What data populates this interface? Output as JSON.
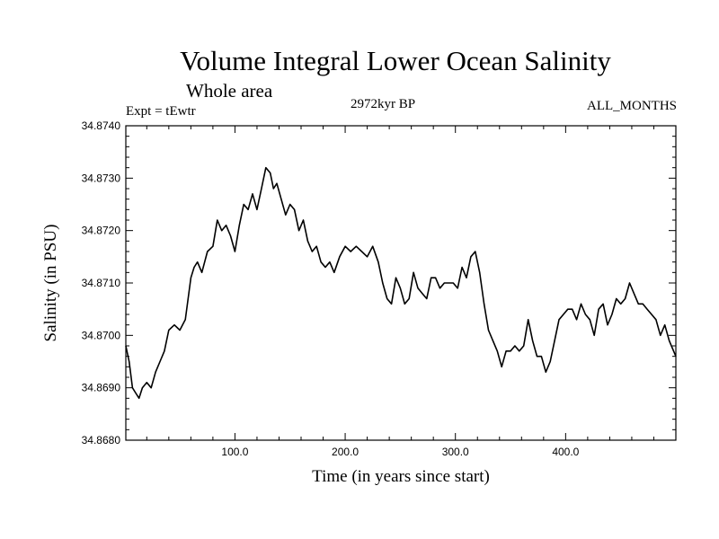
{
  "title": "Volume Integral Lower Ocean Salinity",
  "subtitle": "Whole area",
  "experiment": "Expt = tEwtr",
  "period": "2972kyr BP",
  "months": "ALL_MONTHS",
  "chart_data": {
    "type": "line",
    "title": "Volume Integral Lower Ocean Salinity",
    "xlabel": "Time (in years since start)",
    "ylabel": "Salinity (in PSU)",
    "xlim": [
      1,
      500
    ],
    "ylim": [
      34.868,
      34.874
    ],
    "xticks": [
      100,
      200,
      300,
      400
    ],
    "xtick_labels": [
      "100.0",
      "200.0",
      "300.0",
      "400.0"
    ],
    "yticks": [
      34.868,
      34.869,
      34.87,
      34.871,
      34.872,
      34.873,
      34.874
    ],
    "ytick_labels": [
      "34.8680",
      "34.8690",
      "34.8700",
      "34.8710",
      "34.8720",
      "34.8730",
      "34.8740"
    ],
    "line_color": "#000000",
    "series": [
      {
        "name": "salinity",
        "x": [
          1,
          4,
          7,
          10,
          13,
          16,
          20,
          24,
          28,
          32,
          36,
          40,
          45,
          50,
          55,
          60,
          63,
          66,
          70,
          75,
          80,
          84,
          88,
          92,
          96,
          100,
          104,
          108,
          112,
          116,
          120,
          124,
          128,
          132,
          135,
          138,
          142,
          146,
          150,
          154,
          158,
          162,
          166,
          170,
          174,
          178,
          182,
          186,
          190,
          195,
          200,
          205,
          210,
          215,
          220,
          225,
          230,
          234,
          238,
          242,
          246,
          250,
          254,
          258,
          262,
          266,
          270,
          274,
          278,
          282,
          286,
          290,
          294,
          298,
          302,
          306,
          310,
          314,
          318,
          322,
          326,
          330,
          334,
          338,
          342,
          346,
          350,
          354,
          358,
          362,
          366,
          370,
          374,
          378,
          382,
          386,
          390,
          394,
          398,
          402,
          406,
          410,
          414,
          418,
          422,
          426,
          430,
          434,
          438,
          442,
          446,
          450,
          454,
          458,
          462,
          466,
          470,
          474,
          478,
          482,
          486,
          490,
          494,
          498,
          500
        ],
        "values": [
          34.8698,
          34.8695,
          34.869,
          34.8689,
          34.8688,
          34.869,
          34.8691,
          34.869,
          34.8693,
          34.8695,
          34.8697,
          34.8701,
          34.8702,
          34.8701,
          34.8703,
          34.8711,
          34.8713,
          34.8714,
          34.8712,
          34.8716,
          34.8717,
          34.8722,
          34.872,
          34.8721,
          34.8719,
          34.8716,
          34.8721,
          34.8725,
          34.8724,
          34.8727,
          34.8724,
          34.8728,
          34.8732,
          34.8731,
          34.8728,
          34.8729,
          34.8726,
          34.8723,
          34.8725,
          34.8724,
          34.872,
          34.8722,
          34.8718,
          34.8716,
          34.8717,
          34.8714,
          34.8713,
          34.8714,
          34.8712,
          34.8715,
          34.8717,
          34.8716,
          34.8717,
          34.8716,
          34.8715,
          34.8717,
          34.8714,
          34.871,
          34.8707,
          34.8706,
          34.8711,
          34.8709,
          34.8706,
          34.8707,
          34.8712,
          34.8709,
          34.8708,
          34.8707,
          34.8711,
          34.8711,
          34.8709,
          34.871,
          34.871,
          34.871,
          34.8709,
          34.8713,
          34.8711,
          34.8715,
          34.8716,
          34.8712,
          34.8706,
          34.8701,
          34.8699,
          34.8697,
          34.8694,
          34.8697,
          34.8697,
          34.8698,
          34.8697,
          34.8698,
          34.8703,
          34.8699,
          34.8696,
          34.8696,
          34.8693,
          34.8695,
          34.8699,
          34.8703,
          34.8704,
          34.8705,
          34.8705,
          34.8703,
          34.8706,
          34.8704,
          34.8703,
          34.87,
          34.8705,
          34.8706,
          34.8702,
          34.8704,
          34.8707,
          34.8706,
          34.8707,
          34.871,
          34.8708,
          34.8706,
          34.8706,
          34.8705,
          34.8704,
          34.8703,
          34.87,
          34.8702,
          34.8699,
          34.8697,
          34.8696
        ]
      }
    ]
  }
}
